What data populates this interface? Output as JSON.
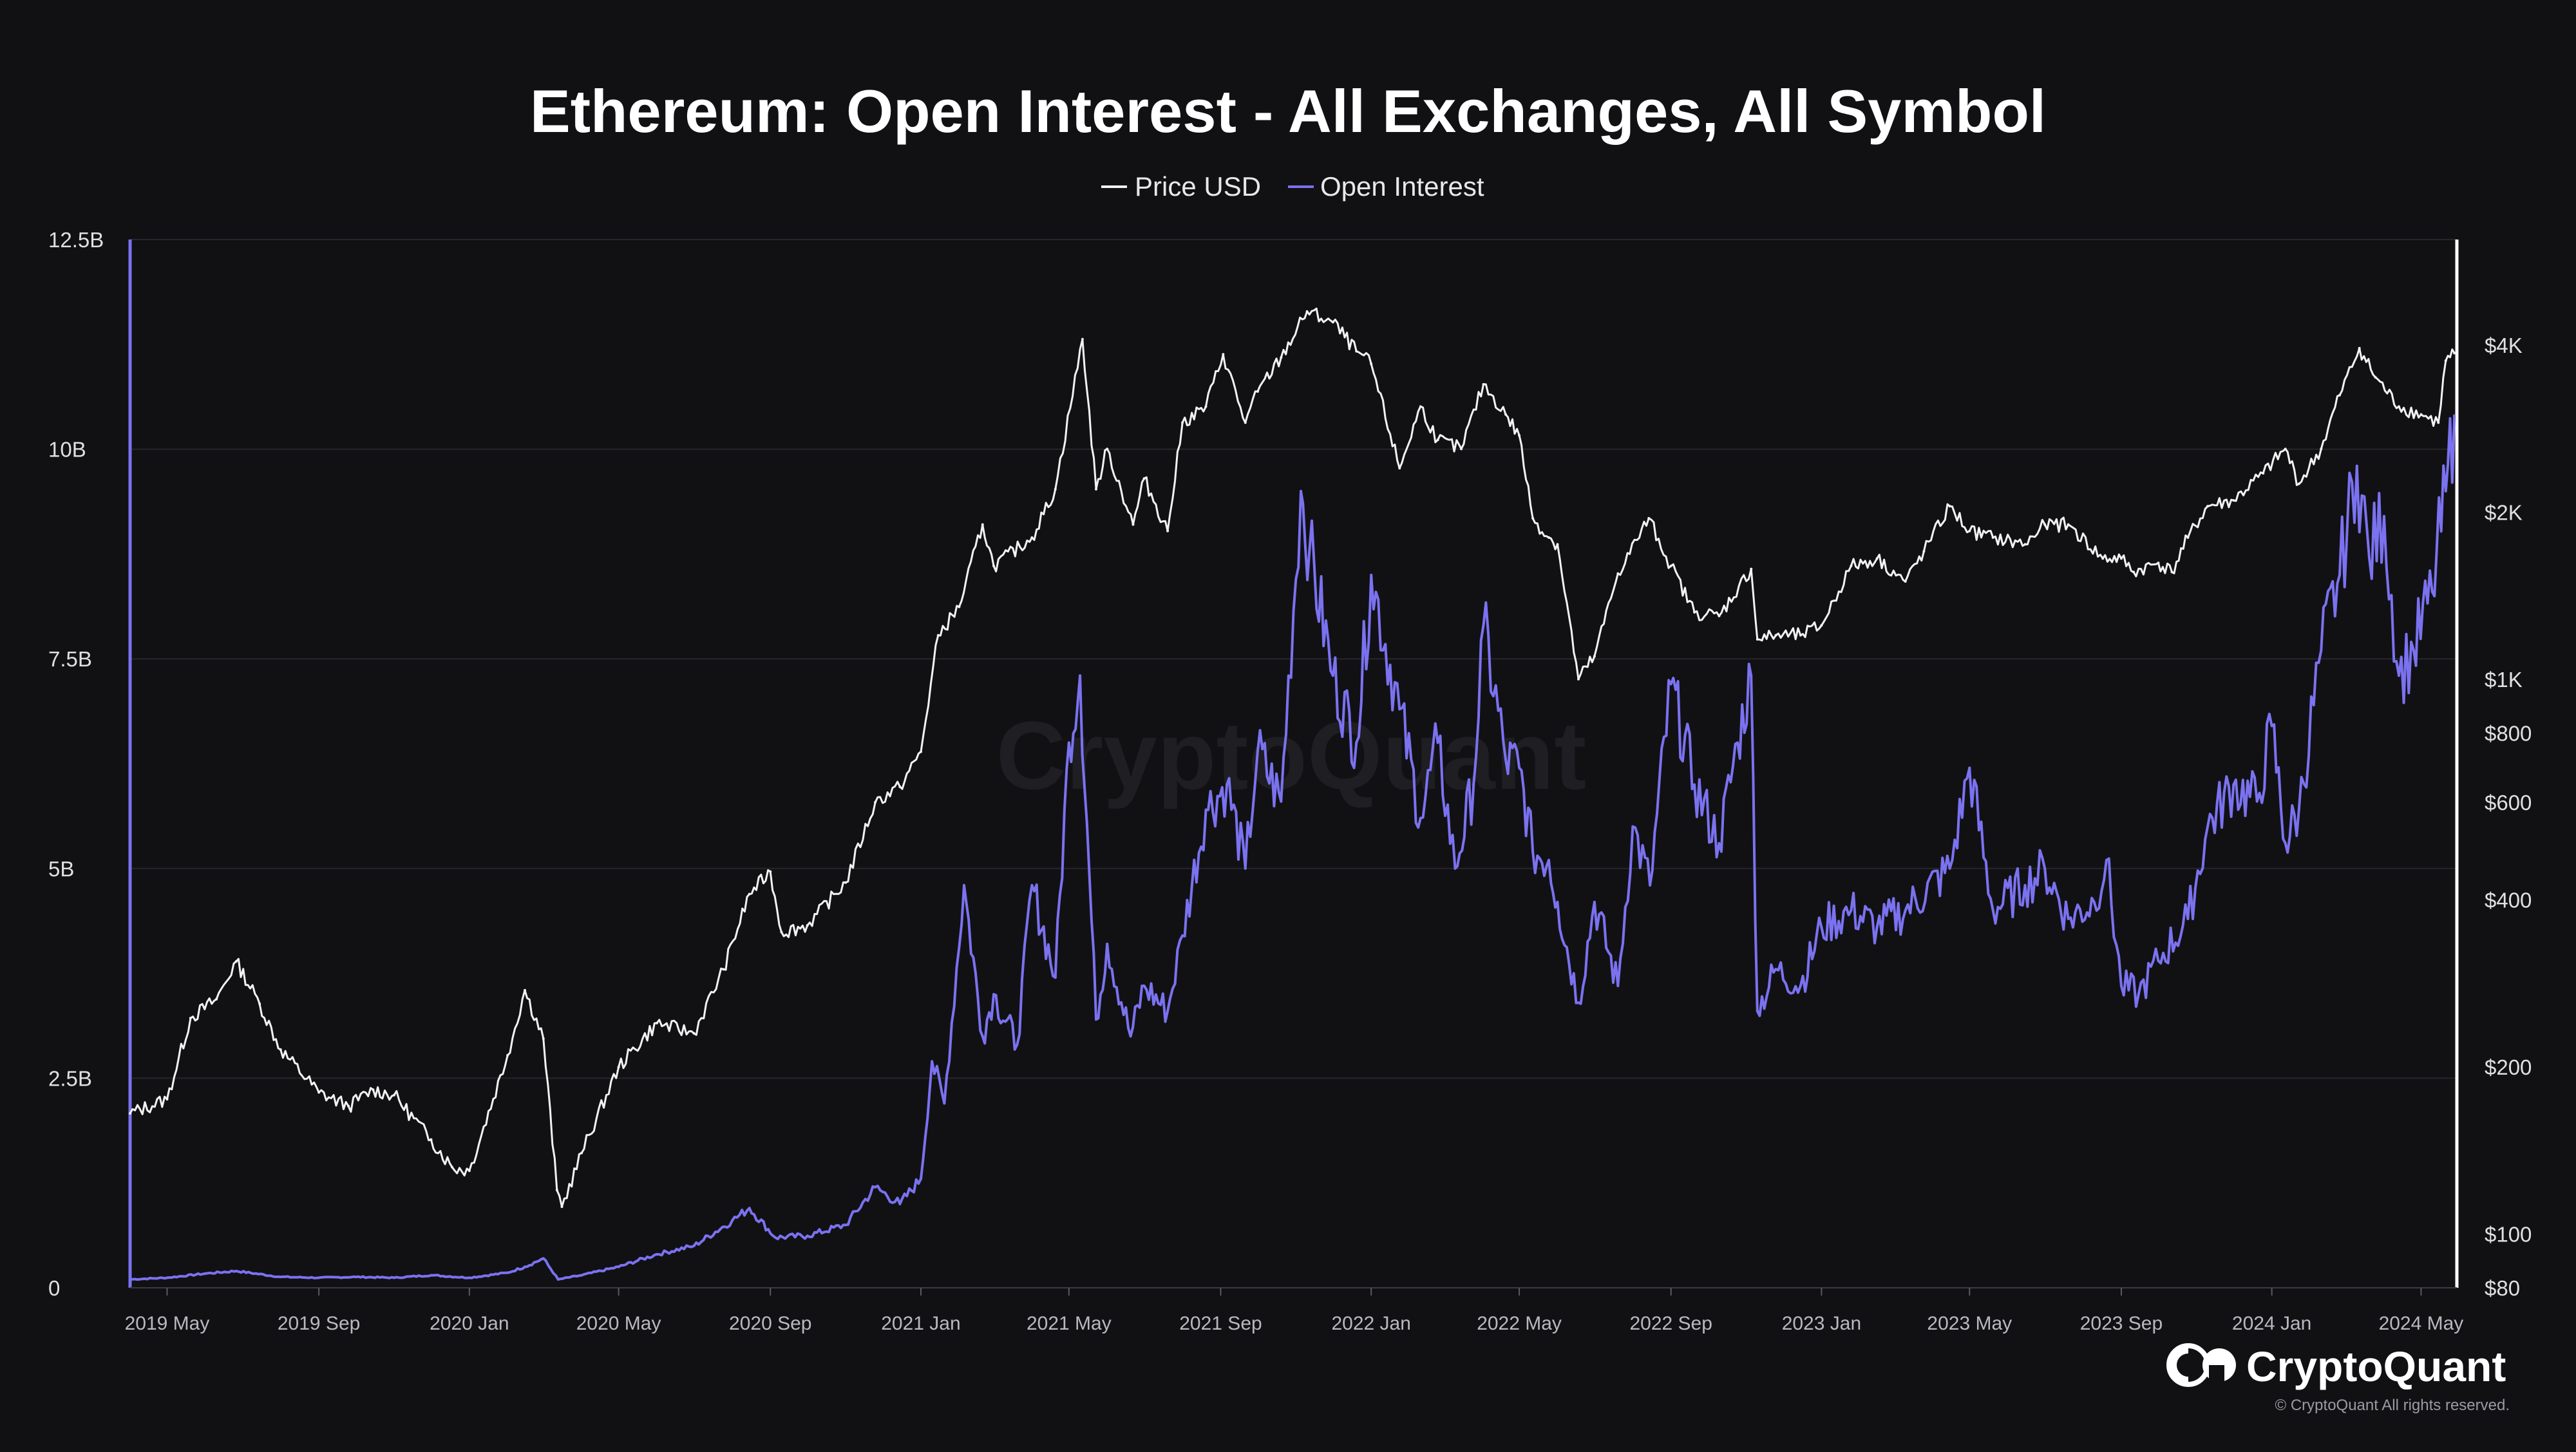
{
  "colors": {
    "background": "#111114",
    "price": "#f2f2f2",
    "open_interest": "#7b72f0",
    "grid": "#26262c",
    "axis_left": "#7b72f0",
    "axis_right": "#ffffff"
  },
  "brand": {
    "name": "CryptoQuant",
    "copyright": "© CryptoQuant All rights reserved.",
    "watermark": "CryptoQuant",
    "logo_icon": "cryptoquant-logo-icon"
  },
  "chart_data": {
    "type": "line",
    "title": "Ethereum: Open Interest - All Exchanges, All Symbol",
    "legend": [
      "Price USD",
      "Open Interest"
    ],
    "legend_position": "top-center",
    "grid": true,
    "x_ticks": [
      "2019 May",
      "2019 Sep",
      "2020 Jan",
      "2020 May",
      "2020 Sep",
      "2021 Jan",
      "2021 May",
      "2021 Sep",
      "2022 Jan",
      "2022 May",
      "2022 Sep",
      "2023 Jan",
      "2023 May",
      "2023 Sep",
      "2024 Jan",
      "2024 May"
    ],
    "xlim": [
      "2019-04-01",
      "2024-05-30"
    ],
    "left_axis": {
      "label": "",
      "ticks": [
        "0",
        "2.5B",
        "5B",
        "7.5B",
        "10B",
        "12.5B"
      ],
      "tick_values": [
        0,
        2.5,
        5,
        7.5,
        10,
        12.5
      ],
      "unit": "B",
      "ylim": [
        0,
        12.5
      ]
    },
    "right_axis": {
      "label": "",
      "scale": "log",
      "ticks": [
        "$80",
        "$100",
        "$200",
        "$400",
        "$600",
        "$800",
        "$1K",
        "$2K",
        "$4K"
      ],
      "tick_values": [
        80,
        100,
        200,
        400,
        600,
        800,
        1000,
        2000,
        4000
      ],
      "ylim": [
        80,
        6200
      ]
    },
    "series": [
      {
        "name": "Price USD",
        "axis": "right",
        "x": [
          "2019-04-01",
          "2019-05-01",
          "2019-05-20",
          "2019-06-10",
          "2019-06-26",
          "2019-07-15",
          "2019-08-01",
          "2019-09-01",
          "2019-09-25",
          "2019-10-15",
          "2019-11-01",
          "2019-12-01",
          "2019-12-18",
          "2020-01-01",
          "2020-02-01",
          "2020-02-15",
          "2020-03-01",
          "2020-03-12",
          "2020-03-16",
          "2020-04-01",
          "2020-05-01",
          "2020-06-01",
          "2020-07-01",
          "2020-07-25",
          "2020-08-15",
          "2020-09-01",
          "2020-09-10",
          "2020-10-01",
          "2020-11-01",
          "2020-11-25",
          "2020-12-15",
          "2021-01-01",
          "2021-01-15",
          "2021-02-01",
          "2021-02-20",
          "2021-03-01",
          "2021-04-01",
          "2021-04-20",
          "2021-05-12",
          "2021-05-23",
          "2021-06-01",
          "2021-06-22",
          "2021-07-01",
          "2021-07-20",
          "2021-08-01",
          "2021-08-20",
          "2021-09-03",
          "2021-09-21",
          "2021-10-01",
          "2021-10-20",
          "2021-11-10",
          "2021-12-01",
          "2021-12-20",
          "2022-01-01",
          "2022-01-24",
          "2022-02-10",
          "2022-02-24",
          "2022-03-15",
          "2022-04-02",
          "2022-04-20",
          "2022-05-01",
          "2022-05-12",
          "2022-05-25",
          "2022-06-01",
          "2022-06-18",
          "2022-07-01",
          "2022-07-20",
          "2022-08-14",
          "2022-09-01",
          "2022-09-20",
          "2022-10-10",
          "2022-11-05",
          "2022-11-10",
          "2022-11-25",
          "2022-12-15",
          "2023-01-01",
          "2023-01-25",
          "2023-02-15",
          "2023-03-10",
          "2023-03-25",
          "2023-04-15",
          "2023-05-01",
          "2023-05-20",
          "2023-06-15",
          "2023-07-01",
          "2023-07-20",
          "2023-08-17",
          "2023-09-01",
          "2023-09-11",
          "2023-10-01",
          "2023-10-12",
          "2023-10-25",
          "2023-11-10",
          "2023-12-01",
          "2023-12-25",
          "2024-01-12",
          "2024-01-23",
          "2024-02-10",
          "2024-02-25",
          "2024-03-12",
          "2024-03-25",
          "2024-04-13",
          "2024-05-01",
          "2024-05-15",
          "2024-05-21",
          "2024-05-28"
        ],
        "y": [
          165,
          175,
          245,
          265,
          310,
          260,
          215,
          180,
          170,
          182,
          178,
          148,
          132,
          130,
          210,
          275,
          225,
          120,
          112,
          140,
          200,
          240,
          230,
          300,
          410,
          450,
          350,
          360,
          430,
          600,
          640,
          740,
          1200,
          1350,
          1900,
          1600,
          1800,
          2200,
          4100,
          2200,
          2600,
          1900,
          2300,
          1850,
          2900,
          3100,
          3850,
          2900,
          3300,
          3800,
          4600,
          4400,
          3900,
          3700,
          2400,
          3100,
          2700,
          2600,
          3400,
          3000,
          2750,
          1950,
          1800,
          1750,
          1000,
          1100,
          1550,
          1950,
          1600,
          1320,
          1300,
          1580,
          1180,
          1200,
          1200,
          1250,
          1600,
          1650,
          1500,
          1700,
          2050,
          1850,
          1800,
          1750,
          1900,
          1900,
          1650,
          1650,
          1560,
          1620,
          1560,
          1800,
          2050,
          2100,
          2350,
          2600,
          2250,
          2600,
          3250,
          3950,
          3500,
          3100,
          3000,
          2900,
          3750,
          3870
        ]
      },
      {
        "name": "Open Interest",
        "axis": "left",
        "unit": "B",
        "x": [
          "2019-04-01",
          "2019-05-01",
          "2019-06-01",
          "2019-06-26",
          "2019-08-01",
          "2019-09-01",
          "2019-10-01",
          "2019-11-01",
          "2019-12-01",
          "2020-01-01",
          "2020-02-01",
          "2020-02-15",
          "2020-03-01",
          "2020-03-13",
          "2020-04-01",
          "2020-05-01",
          "2020-06-01",
          "2020-07-01",
          "2020-08-01",
          "2020-08-15",
          "2020-09-05",
          "2020-10-01",
          "2020-11-01",
          "2020-11-25",
          "2020-12-15",
          "2021-01-01",
          "2021-01-10",
          "2021-01-20",
          "2021-02-05",
          "2021-02-20",
          "2021-03-01",
          "2021-03-20",
          "2021-04-01",
          "2021-04-20",
          "2021-05-01",
          "2021-05-10",
          "2021-05-23",
          "2021-06-01",
          "2021-06-20",
          "2021-07-01",
          "2021-07-20",
          "2021-08-01",
          "2021-08-20",
          "2021-09-06",
          "2021-09-21",
          "2021-10-01",
          "2021-10-20",
          "2021-11-05",
          "2021-11-12",
          "2021-12-01",
          "2021-12-20",
          "2022-01-01",
          "2022-01-24",
          "2022-02-10",
          "2022-02-24",
          "2022-03-10",
          "2022-03-25",
          "2022-04-02",
          "2022-04-20",
          "2022-05-01",
          "2022-05-12",
          "2022-05-25",
          "2022-06-01",
          "2022-06-18",
          "2022-07-01",
          "2022-07-20",
          "2022-08-01",
          "2022-08-15",
          "2022-09-01",
          "2022-09-20",
          "2022-10-10",
          "2022-10-25",
          "2022-11-05",
          "2022-11-10",
          "2022-11-25",
          "2022-12-15",
          "2023-01-01",
          "2023-01-25",
          "2023-02-15",
          "2023-03-10",
          "2023-04-15",
          "2023-05-01",
          "2023-05-20",
          "2023-06-15",
          "2023-07-01",
          "2023-07-20",
          "2023-08-10",
          "2023-08-20",
          "2023-09-01",
          "2023-09-15",
          "2023-10-01",
          "2023-10-25",
          "2023-11-10",
          "2023-12-01",
          "2023-12-20",
          "2024-01-01",
          "2024-01-12",
          "2024-01-23",
          "2024-02-10",
          "2024-02-25",
          "2024-03-10",
          "2024-03-20",
          "2024-04-01",
          "2024-04-13",
          "2024-04-25",
          "2024-05-10",
          "2024-05-21",
          "2024-05-28"
        ],
        "y": [
          0.1,
          0.12,
          0.17,
          0.2,
          0.13,
          0.12,
          0.13,
          0.12,
          0.15,
          0.12,
          0.18,
          0.25,
          0.35,
          0.1,
          0.15,
          0.25,
          0.4,
          0.5,
          0.8,
          0.95,
          0.6,
          0.62,
          0.75,
          1.2,
          1.0,
          1.3,
          2.7,
          2.2,
          4.8,
          3.0,
          3.5,
          2.9,
          4.8,
          3.7,
          6.5,
          7.3,
          3.2,
          4.1,
          3.0,
          3.6,
          3.3,
          4.2,
          5.7,
          6.0,
          5.0,
          6.4,
          5.8,
          9.5,
          8.8,
          7.3,
          6.5,
          8.5,
          6.9,
          5.6,
          6.5,
          5.0,
          6.0,
          7.9,
          6.3,
          6.2,
          5.2,
          5.1,
          4.6,
          3.4,
          4.6,
          3.6,
          5.5,
          4.8,
          7.2,
          6.0,
          5.3,
          6.5,
          7.3,
          3.3,
          3.8,
          3.6,
          4.3,
          4.5,
          4.3,
          4.5,
          5.0,
          6.2,
          4.5,
          4.8,
          5.0,
          4.4,
          4.6,
          5.1,
          3.6,
          3.5,
          3.9,
          4.4,
          5.5,
          6.0,
          5.8,
          6.7,
          5.3,
          5.7,
          7.6,
          8.5,
          9.8,
          8.7,
          9.2,
          7.3,
          7.6,
          8.3,
          9.5,
          10.4
        ]
      }
    ]
  }
}
